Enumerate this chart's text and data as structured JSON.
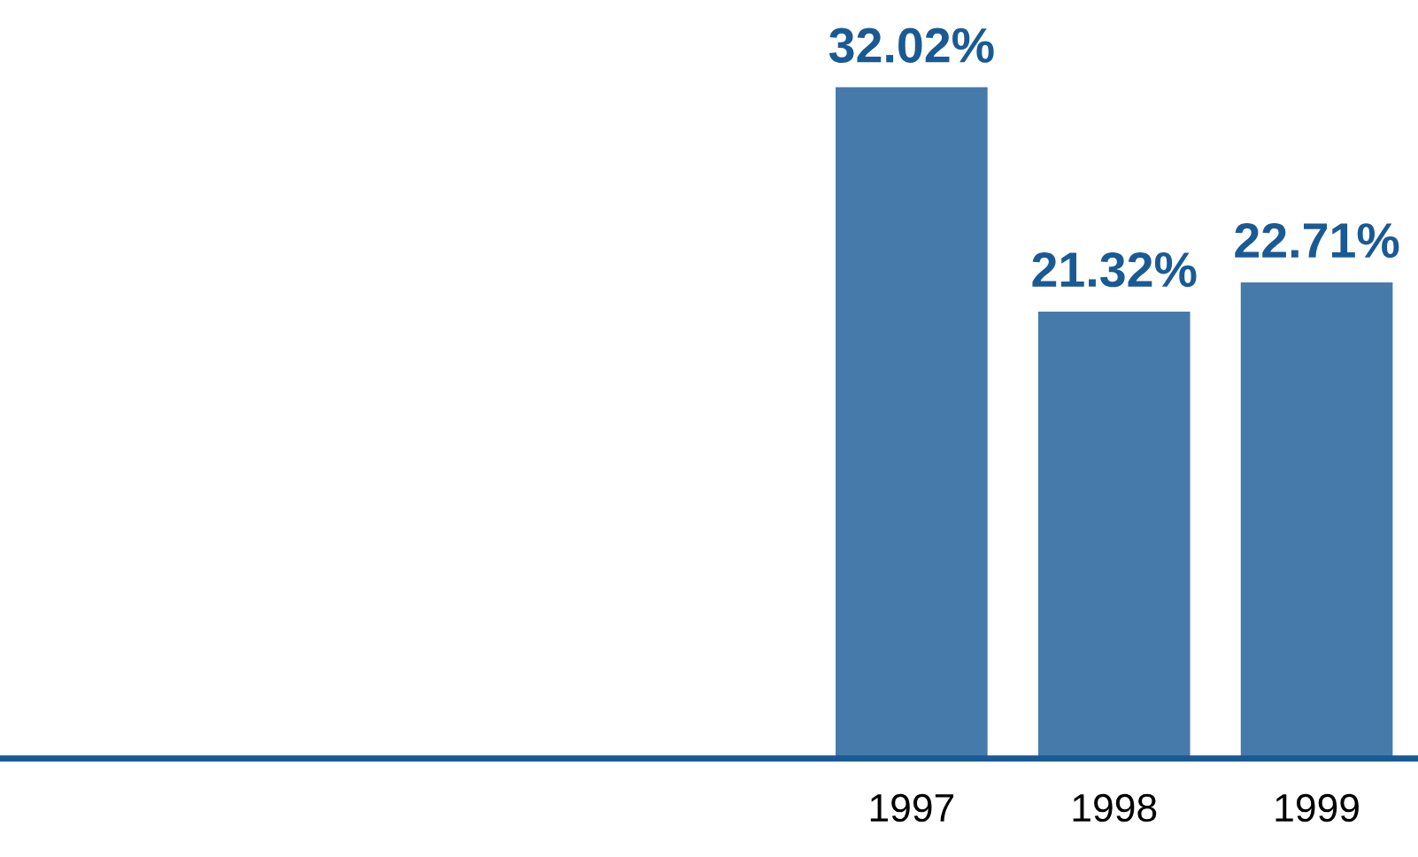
{
  "chart_data": {
    "type": "bar",
    "categories": [
      null,
      null,
      null,
      null,
      "1997",
      "1998",
      "1999"
    ],
    "values": [
      null,
      null,
      null,
      null,
      32.02,
      21.32,
      22.71
    ],
    "value_labels": [
      null,
      null,
      null,
      null,
      "32.02%",
      "21.32%",
      "22.71%"
    ],
    "color": "#467aaa"
  }
}
